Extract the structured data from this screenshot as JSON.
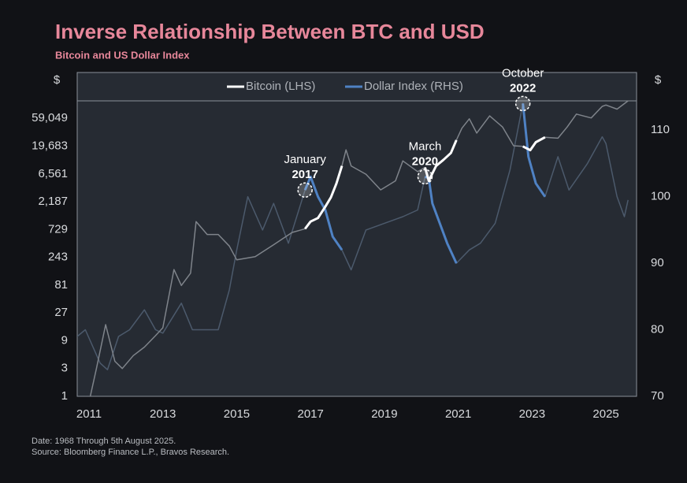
{
  "chart_data": {
    "type": "line",
    "title": "Inverse Relationship Between BTC and USD",
    "subtitle": "Bitcoin and US Dollar Index",
    "y_unit": "$",
    "y2_unit": "$",
    "notes": [
      "Date: 1968 Through 5th August 2025.",
      "Source: Bloomberg Finance L.P., Bravos Research."
    ],
    "xlim": [
      2010.68,
      2025.83
    ],
    "xticks": [
      2011,
      2013,
      2015,
      2017,
      2019,
      2021,
      2023,
      2025
    ],
    "ylim": [
      1,
      118000
    ],
    "y_log": true,
    "yticks": [
      1,
      3,
      9,
      27,
      81,
      243,
      729,
      {
        "value": 2187,
        "label": "2,187"
      },
      {
        "value": 6561,
        "label": "6,561"
      },
      {
        "value": 19683,
        "label": "19,683"
      },
      {
        "value": 59049,
        "label": "59,049"
      }
    ],
    "y2lim": [
      70,
      114.4
    ],
    "y2ticks": [
      70,
      80,
      90,
      100,
      110
    ],
    "series": [
      {
        "name": "Bitcoin (LHS)",
        "color": "#7f848b",
        "highlight_color": "#ffffff",
        "axis": "y",
        "x": [
          2010.9,
          2011.0,
          2011.2,
          2011.45,
          2011.7,
          2011.9,
          2012.2,
          2012.5,
          2012.8,
          2013.0,
          2013.3,
          2013.5,
          2013.75,
          2013.9,
          2014.2,
          2014.5,
          2014.8,
          2015.0,
          2015.5,
          2016.0,
          2016.5,
          2016.85,
          2017.0,
          2017.2,
          2017.4,
          2017.55,
          2017.7,
          2017.85,
          2017.96,
          2018.1,
          2018.5,
          2018.9,
          2019.3,
          2019.5,
          2019.9,
          2020.1,
          2020.2,
          2020.4,
          2020.6,
          2020.8,
          2020.95,
          2021.1,
          2021.3,
          2021.5,
          2021.85,
          2022.2,
          2022.5,
          2022.75,
          2022.95,
          2023.1,
          2023.35,
          2023.7,
          2023.95,
          2024.2,
          2024.6,
          2024.9,
          2025.0,
          2025.3,
          2025.6
        ],
        "values": [
          1,
          0.8,
          3,
          17,
          4,
          3,
          5,
          7,
          11,
          15,
          150,
          80,
          130,
          1000,
          600,
          600,
          380,
          220,
          250,
          400,
          650,
          750,
          1000,
          1150,
          1800,
          2600,
          4500,
          9000,
          17000,
          9000,
          6500,
          3500,
          5000,
          11000,
          7200,
          8500,
          5000,
          9000,
          11500,
          15000,
          25000,
          40000,
          58000,
          33000,
          65000,
          42000,
          20000,
          19500,
          16800,
          23000,
          28000,
          27000,
          42000,
          70000,
          60000,
          95000,
          100000,
          85000,
          118000
        ]
      },
      {
        "name": "Dollar Index (RHS)",
        "color": "#4c5a6c",
        "highlight_color": "#4f82c4",
        "axis": "y2",
        "x": [
          2010.68,
          2010.9,
          2011.3,
          2011.5,
          2011.8,
          2012.1,
          2012.5,
          2012.8,
          2013.0,
          2013.5,
          2013.8,
          2014.0,
          2014.5,
          2014.8,
          2015.0,
          2015.3,
          2015.7,
          2016.0,
          2016.4,
          2016.85,
          2017.0,
          2017.2,
          2017.4,
          2017.6,
          2017.85,
          2018.1,
          2018.5,
          2019.0,
          2019.5,
          2019.9,
          2020.1,
          2020.2,
          2020.3,
          2020.5,
          2020.7,
          2020.95,
          2021.3,
          2021.6,
          2022.0,
          2022.4,
          2022.75,
          2022.9,
          2023.1,
          2023.35,
          2023.7,
          2024.0,
          2024.5,
          2024.9,
          2025.0,
          2025.3,
          2025.5,
          2025.6
        ],
        "values": [
          79,
          80,
          75,
          74,
          79,
          80,
          83,
          80,
          79.5,
          84,
          80,
          80,
          80,
          86,
          92,
          100,
          95,
          99,
          93,
          101,
          103,
          100,
          98,
          94,
          92,
          89,
          95,
          96,
          97,
          98,
          103,
          102.8,
          99,
          96,
          93,
          90,
          92,
          93,
          96,
          104,
          114,
          106,
          102,
          100,
          106,
          101,
          105,
          109,
          108,
          100,
          97,
          99.5
        ]
      }
    ],
    "annotations": [
      {
        "text": [
          "January",
          "2017"
        ],
        "x": [
          2016.85,
          2017.85
        ]
      },
      {
        "text": [
          "March",
          "2020"
        ],
        "x": [
          2020.1,
          2020.95
        ]
      },
      {
        "text": [
          "October",
          "2022"
        ],
        "x": [
          2022.75,
          2023.35
        ]
      }
    ]
  }
}
